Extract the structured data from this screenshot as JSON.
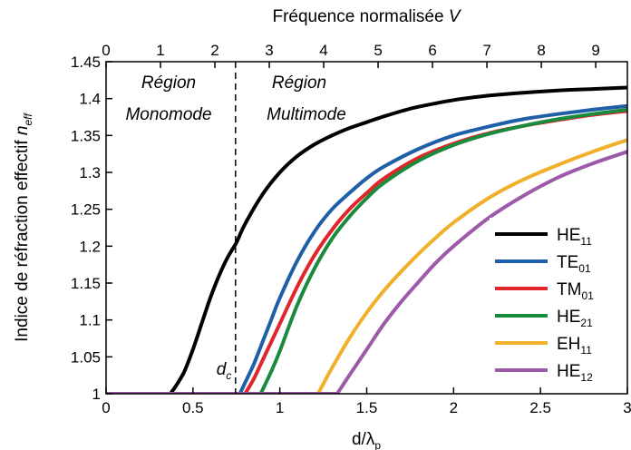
{
  "chart_data": {
    "type": "line",
    "xlabel_main": "d/λ",
    "xlabel_sub": "p",
    "xlabel_top_main": "Fréquence normalisée ",
    "xlabel_top_var": "V",
    "ylabel_main": "Indice de réfraction effectif ",
    "ylabel_var": "n",
    "ylabel_sub": "eff",
    "xlim": [
      0,
      3
    ],
    "ylim": [
      1,
      1.45
    ],
    "x_ticks": [
      "0",
      "0.5",
      "1",
      "1.5",
      "2",
      "2.5",
      "3"
    ],
    "y_ticks": [
      "1",
      "1.05",
      "1.1",
      "1.15",
      "1.2",
      "1.25",
      "1.3",
      "1.35",
      "1.4",
      "1.45"
    ],
    "top_ticks": [
      "0",
      "1",
      "2",
      "3",
      "4",
      "5",
      "6",
      "7",
      "8",
      "9"
    ],
    "top_x_per_unit": 0.3131,
    "cutoff": {
      "x": 0.745,
      "label_main": "d",
      "label_sub": "c"
    },
    "regions": [
      {
        "line1": "Région",
        "line2": "Monomode"
      },
      {
        "line1": "Région",
        "line2": "Multimode"
      }
    ],
    "series": [
      {
        "name": "HE",
        "sub": "11",
        "color": "#000000",
        "x": [
          0.37,
          0.4,
          0.45,
          0.5,
          0.55,
          0.6,
          0.65,
          0.7,
          0.75,
          0.8,
          0.9,
          1.0,
          1.1,
          1.2,
          1.3,
          1.4,
          1.5,
          1.6,
          1.7,
          1.8,
          2.0,
          2.2,
          2.4,
          2.6,
          2.8,
          3.0
        ],
        "y": [
          1.0,
          1.01,
          1.03,
          1.06,
          1.095,
          1.13,
          1.16,
          1.185,
          1.205,
          1.23,
          1.27,
          1.3,
          1.322,
          1.338,
          1.35,
          1.36,
          1.368,
          1.376,
          1.383,
          1.389,
          1.398,
          1.404,
          1.408,
          1.411,
          1.413,
          1.415
        ]
      },
      {
        "name": "TE",
        "sub": "01",
        "color": "#1f5fa8",
        "x": [
          0.77,
          0.8,
          0.85,
          0.9,
          0.95,
          1.0,
          1.1,
          1.2,
          1.3,
          1.4,
          1.5,
          1.6,
          1.8,
          2.0,
          2.2,
          2.4,
          2.6,
          2.8,
          3.0
        ],
        "y": [
          1.0,
          1.015,
          1.04,
          1.07,
          1.1,
          1.13,
          1.18,
          1.22,
          1.25,
          1.272,
          1.292,
          1.308,
          1.332,
          1.35,
          1.362,
          1.372,
          1.379,
          1.385,
          1.39
        ]
      },
      {
        "name": "TM",
        "sub": "01",
        "color": "#e2242b",
        "x": [
          0.8,
          0.85,
          0.9,
          0.95,
          1.0,
          1.1,
          1.2,
          1.3,
          1.4,
          1.5,
          1.6,
          1.8,
          2.0,
          2.2,
          2.4,
          2.6,
          2.8,
          3.0
        ],
        "y": [
          1.0,
          1.02,
          1.045,
          1.07,
          1.095,
          1.145,
          1.188,
          1.222,
          1.25,
          1.272,
          1.292,
          1.32,
          1.339,
          1.353,
          1.363,
          1.371,
          1.378,
          1.383
        ]
      },
      {
        "name": "HE",
        "sub": "21",
        "color": "#1a8a3c",
        "x": [
          0.89,
          0.95,
          1.0,
          1.1,
          1.2,
          1.3,
          1.4,
          1.5,
          1.6,
          1.8,
          2.0,
          2.2,
          2.4,
          2.6,
          2.8,
          3.0
        ],
        "y": [
          1.0,
          1.03,
          1.058,
          1.12,
          1.17,
          1.21,
          1.24,
          1.265,
          1.286,
          1.316,
          1.337,
          1.352,
          1.363,
          1.372,
          1.379,
          1.385
        ]
      },
      {
        "name": "EH",
        "sub": "11",
        "color": "#f0b02a",
        "x": [
          1.22,
          1.3,
          1.4,
          1.5,
          1.6,
          1.7,
          1.8,
          1.9,
          2.0,
          2.2,
          2.4,
          2.6,
          2.8,
          3.0
        ],
        "y": [
          1.0,
          1.035,
          1.075,
          1.11,
          1.14,
          1.166,
          1.19,
          1.212,
          1.232,
          1.265,
          1.29,
          1.31,
          1.328,
          1.344
        ]
      },
      {
        "name": "HE",
        "sub": "12",
        "color": "#9c5aa8",
        "x": [
          1.33,
          1.4,
          1.5,
          1.6,
          1.7,
          1.8,
          1.9,
          2.0,
          2.2,
          2.4,
          2.6,
          2.8,
          3.0
        ],
        "y": [
          1.0,
          1.025,
          1.06,
          1.095,
          1.125,
          1.152,
          1.178,
          1.2,
          1.238,
          1.268,
          1.293,
          1.312,
          1.328
        ]
      }
    ]
  }
}
